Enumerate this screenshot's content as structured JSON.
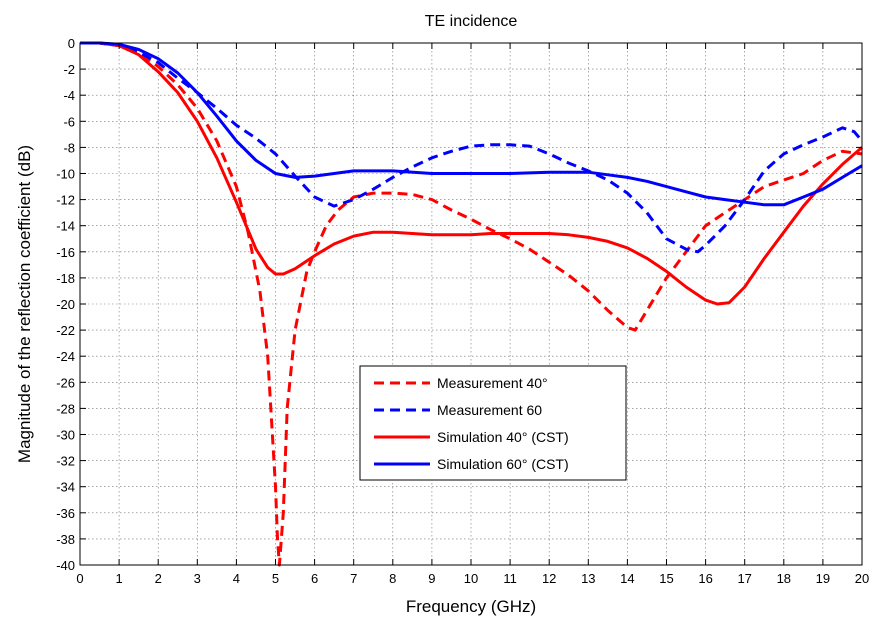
{
  "chart_data": {
    "type": "line",
    "title": "TE incidence",
    "xlabel": "Frequency (GHz)",
    "ylabel": "Magnitude of the reflection coefficient (dB)",
    "xlim": [
      0,
      20
    ],
    "ylim": [
      -40,
      0
    ],
    "xticks": [
      0,
      1,
      2,
      3,
      4,
      5,
      6,
      7,
      8,
      9,
      10,
      11,
      12,
      13,
      14,
      15,
      16,
      17,
      18,
      19,
      20
    ],
    "yticks": [
      0,
      -2,
      -4,
      -6,
      -8,
      -10,
      -12,
      -14,
      -16,
      -18,
      -20,
      -22,
      -24,
      -26,
      -28,
      -30,
      -32,
      -34,
      -36,
      -38,
      -40
    ],
    "grid": true,
    "legend_position": "center",
    "series": [
      {
        "name": "Measurement 40°",
        "color": "#ff0000",
        "style": "dashed",
        "x": [
          0,
          0.5,
          1,
          1.5,
          2,
          2.5,
          3,
          3.5,
          4,
          4.3,
          4.6,
          4.8,
          4.9,
          5.0,
          5.05,
          5.1,
          5.2,
          5.3,
          5.5,
          5.8,
          6.0,
          6.3,
          6.6,
          7.0,
          7.5,
          8.0,
          8.5,
          9.0,
          9.5,
          10.0,
          10.5,
          11.0,
          11.5,
          12.0,
          12.5,
          13.0,
          13.5,
          14.0,
          14.2,
          14.5,
          15.0,
          15.5,
          16.0,
          16.5,
          17.0,
          17.5,
          18.0,
          18.5,
          19.0,
          19.5,
          20.0
        ],
        "y": [
          0,
          0,
          -0.2,
          -0.8,
          -1.8,
          -3.2,
          -5.0,
          -7.5,
          -11.0,
          -14.5,
          -19.0,
          -24.0,
          -29.0,
          -34.0,
          -38.0,
          -40.0,
          -36.0,
          -28.0,
          -22.0,
          -17.5,
          -16.0,
          -14.0,
          -12.8,
          -11.8,
          -11.5,
          -11.5,
          -11.6,
          -12.0,
          -12.8,
          -13.5,
          -14.3,
          -15.0,
          -15.8,
          -16.8,
          -17.8,
          -19.0,
          -20.5,
          -21.8,
          -22.0,
          -20.5,
          -18.0,
          -16.0,
          -14.0,
          -13.0,
          -12.0,
          -11.0,
          -10.5,
          -10.0,
          -9.0,
          -8.3,
          -8.5
        ]
      },
      {
        "name": "Measurement 60",
        "color": "#0000ff",
        "style": "dashed",
        "x": [
          0,
          0.5,
          1,
          1.5,
          2,
          2.5,
          3,
          3.5,
          4,
          4.5,
          5.0,
          5.5,
          6.0,
          6.5,
          7.0,
          7.5,
          8.0,
          8.5,
          9.0,
          9.5,
          10.0,
          10.5,
          11.0,
          11.5,
          12.0,
          12.5,
          13.0,
          13.5,
          14.0,
          14.5,
          15.0,
          15.5,
          15.8,
          16.0,
          16.5,
          17.0,
          17.5,
          18.0,
          18.5,
          19.0,
          19.5,
          19.8,
          20.0
        ],
        "y": [
          0,
          0,
          -0.2,
          -0.7,
          -1.5,
          -2.7,
          -3.8,
          -5.0,
          -6.3,
          -7.3,
          -8.5,
          -10.2,
          -11.8,
          -12.5,
          -12.0,
          -11.2,
          -10.3,
          -9.5,
          -8.8,
          -8.3,
          -7.9,
          -7.8,
          -7.8,
          -7.9,
          -8.5,
          -9.2,
          -9.8,
          -10.5,
          -11.5,
          -13.0,
          -15.0,
          -15.8,
          -16.0,
          -15.5,
          -14.0,
          -12.0,
          -9.8,
          -8.5,
          -7.8,
          -7.2,
          -6.5,
          -6.8,
          -7.5
        ]
      },
      {
        "name": "Simulation 40° (CST)",
        "color": "#ff0000",
        "style": "solid",
        "x": [
          0,
          0.5,
          1,
          1.5,
          2,
          2.5,
          3,
          3.5,
          4,
          4.5,
          4.8,
          5.0,
          5.2,
          5.5,
          6.0,
          6.5,
          7.0,
          7.5,
          8.0,
          8.5,
          9.0,
          9.5,
          10.0,
          10.5,
          11.0,
          11.5,
          12.0,
          12.5,
          13.0,
          13.5,
          14.0,
          14.5,
          15.0,
          15.5,
          16.0,
          16.3,
          16.6,
          17.0,
          17.5,
          18.0,
          18.5,
          19.0,
          19.5,
          20.0
        ],
        "y": [
          0,
          0,
          -0.2,
          -0.9,
          -2.2,
          -3.8,
          -6.0,
          -8.8,
          -12.2,
          -15.8,
          -17.2,
          -17.7,
          -17.7,
          -17.3,
          -16.3,
          -15.4,
          -14.8,
          -14.5,
          -14.5,
          -14.6,
          -14.7,
          -14.7,
          -14.7,
          -14.6,
          -14.6,
          -14.6,
          -14.6,
          -14.7,
          -14.9,
          -15.2,
          -15.7,
          -16.5,
          -17.5,
          -18.7,
          -19.7,
          -20.0,
          -19.9,
          -18.7,
          -16.5,
          -14.5,
          -12.5,
          -10.8,
          -9.3,
          -8.0
        ]
      },
      {
        "name": "Simulation 60° (CST)",
        "color": "#0000ff",
        "style": "solid",
        "x": [
          0,
          0.5,
          1,
          1.5,
          2,
          2.5,
          3,
          3.5,
          4,
          4.5,
          5.0,
          5.5,
          6.0,
          6.5,
          7.0,
          8.0,
          9.0,
          10.0,
          11.0,
          12.0,
          13.0,
          13.5,
          14.0,
          14.5,
          15.0,
          15.5,
          16.0,
          16.5,
          17.0,
          17.5,
          18.0,
          18.5,
          19.0,
          19.5,
          20.0
        ],
        "y": [
          0,
          0,
          -0.1,
          -0.5,
          -1.2,
          -2.3,
          -3.8,
          -5.6,
          -7.5,
          -9.0,
          -10.0,
          -10.3,
          -10.2,
          -10.0,
          -9.8,
          -9.8,
          -10.0,
          -10.0,
          -10.0,
          -9.9,
          -9.9,
          -10.1,
          -10.3,
          -10.6,
          -11.0,
          -11.4,
          -11.8,
          -12.0,
          -12.2,
          -12.4,
          -12.4,
          -11.8,
          -11.2,
          -10.3,
          -9.4
        ]
      }
    ]
  }
}
